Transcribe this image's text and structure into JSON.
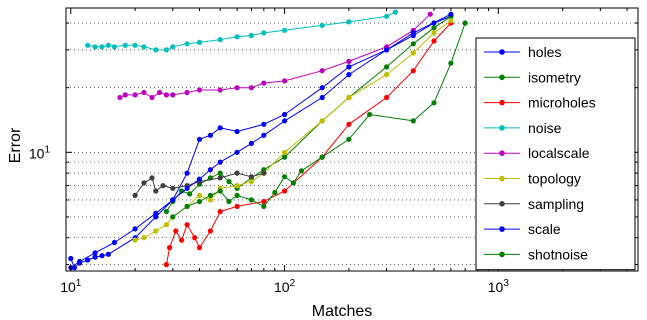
{
  "chart_data": {
    "type": "line",
    "xlabel": "Matches",
    "ylabel": "Error",
    "xscale": "log",
    "yscale": "log",
    "xlim": [
      9.5,
      4500
    ],
    "ylim": [
      2.8,
      47
    ],
    "x_ticks": [
      {
        "value": 10,
        "base": "10",
        "exp": "1"
      },
      {
        "value": 100,
        "base": "10",
        "exp": "2"
      },
      {
        "value": 1000,
        "base": "10",
        "exp": "3"
      }
    ],
    "y_ticks": [
      {
        "value": 10,
        "base": "10",
        "exp": "1"
      }
    ],
    "grid": "dotted-major-and-minor",
    "legend_position": "right",
    "series": [
      {
        "name": "holes",
        "color": "#0000ff",
        "x": [
          10,
          10.4,
          11,
          12,
          13,
          14,
          15,
          20,
          25,
          30,
          35,
          40,
          45,
          50,
          60,
          80,
          100,
          150,
          200,
          300,
          400,
          500,
          600
        ],
        "y": [
          3.2,
          2.9,
          3.05,
          3.15,
          3.25,
          3.3,
          3.35,
          4.0,
          5.0,
          6.0,
          8.0,
          11.5,
          12.0,
          13.0,
          12.5,
          13.5,
          15.0,
          20.0,
          25.0,
          30.0,
          35.0,
          40.0,
          43.0
        ]
      },
      {
        "name": "isometry",
        "color": "#008000",
        "x": [
          28,
          30,
          33,
          36,
          40,
          45,
          50,
          55,
          60,
          70,
          80,
          100,
          150,
          200,
          300,
          400,
          500,
          600
        ],
        "y": [
          5.3,
          5.9,
          6.6,
          6.4,
          7.1,
          7.6,
          8.0,
          7.3,
          6.8,
          7.6,
          8.3,
          9.5,
          14.0,
          18.0,
          25.0,
          32.0,
          38.0,
          43.0
        ]
      },
      {
        "name": "microholes",
        "color": "#ff0000",
        "x": [
          28,
          29,
          31,
          33,
          35,
          38,
          40,
          45,
          50,
          60,
          80,
          100,
          150,
          200,
          300,
          400,
          500,
          600
        ],
        "y": [
          3.0,
          3.6,
          4.3,
          3.9,
          4.6,
          4.0,
          3.6,
          4.3,
          5.3,
          5.6,
          5.9,
          6.6,
          9.5,
          13.5,
          18.0,
          24.0,
          33.0,
          40.0
        ]
      },
      {
        "name": "noise",
        "color": "#00bfbf",
        "x": [
          12,
          13,
          14,
          15,
          16,
          18,
          20,
          22,
          25,
          28,
          30,
          35,
          40,
          50,
          60,
          70,
          80,
          100,
          150,
          200,
          300,
          330
        ],
        "y": [
          31.5,
          31.0,
          31.0,
          31.5,
          31.0,
          31.5,
          31.5,
          31.0,
          30.0,
          30.0,
          31.0,
          32.0,
          32.5,
          33.5,
          34.5,
          35.0,
          36.0,
          37.0,
          39.0,
          40.5,
          43.0,
          45.0
        ]
      },
      {
        "name": "localscale",
        "color": "#bf00bf",
        "x": [
          17,
          18,
          20,
          22,
          24,
          26,
          28,
          30,
          35,
          40,
          50,
          60,
          70,
          80,
          100,
          150,
          200,
          300,
          400,
          480
        ],
        "y": [
          18.0,
          18.5,
          18.5,
          19.0,
          18.0,
          19.0,
          18.5,
          18.5,
          19.0,
          19.5,
          19.5,
          20.0,
          20.0,
          21.0,
          21.5,
          24.0,
          26.5,
          31.0,
          37.0,
          44.0
        ]
      },
      {
        "name": "topology",
        "color": "#bfbf00",
        "x": [
          20,
          22,
          25,
          28,
          30,
          35,
          40,
          45,
          50,
          60,
          70,
          80,
          100,
          150,
          200,
          300,
          400,
          500,
          600
        ],
        "y": [
          3.9,
          4.0,
          4.3,
          4.6,
          5.0,
          5.6,
          6.3,
          6.0,
          6.8,
          7.0,
          7.3,
          8.0,
          10.0,
          14.0,
          18.0,
          23.0,
          29.0,
          36.0,
          41.0
        ]
      },
      {
        "name": "sampling",
        "color": "#404040",
        "x": [
          20,
          22,
          24,
          25,
          27,
          30,
          35,
          40,
          50,
          60,
          70,
          80
        ],
        "y": [
          6.3,
          7.2,
          7.6,
          6.6,
          7.0,
          6.8,
          7.0,
          7.3,
          7.6,
          8.0,
          7.7,
          8.0
        ]
      },
      {
        "name": "scale",
        "color": "#0000ff",
        "x": [
          10,
          11,
          13,
          16,
          20,
          25,
          30,
          35,
          40,
          45,
          50,
          60,
          70,
          80,
          100,
          150,
          200,
          300,
          400,
          600
        ],
        "y": [
          2.9,
          3.1,
          3.4,
          3.8,
          4.4,
          5.2,
          6.0,
          6.8,
          7.5,
          8.3,
          9.0,
          10.0,
          11.0,
          12.0,
          14.0,
          18.0,
          23.0,
          30.0,
          36.0,
          44.0
        ]
      },
      {
        "name": "shotnoise",
        "color": "#008000",
        "x": [
          30,
          35,
          40,
          45,
          50,
          55,
          60,
          70,
          80,
          90,
          100,
          110,
          120,
          150,
          200,
          250,
          400,
          500,
          600,
          700
        ],
        "y": [
          5.0,
          5.6,
          5.9,
          6.3,
          6.6,
          5.9,
          6.3,
          6.0,
          5.6,
          6.5,
          7.7,
          7.2,
          8.2,
          9.5,
          11.5,
          15.0,
          14.0,
          17.0,
          26.0,
          40.0
        ]
      }
    ]
  }
}
